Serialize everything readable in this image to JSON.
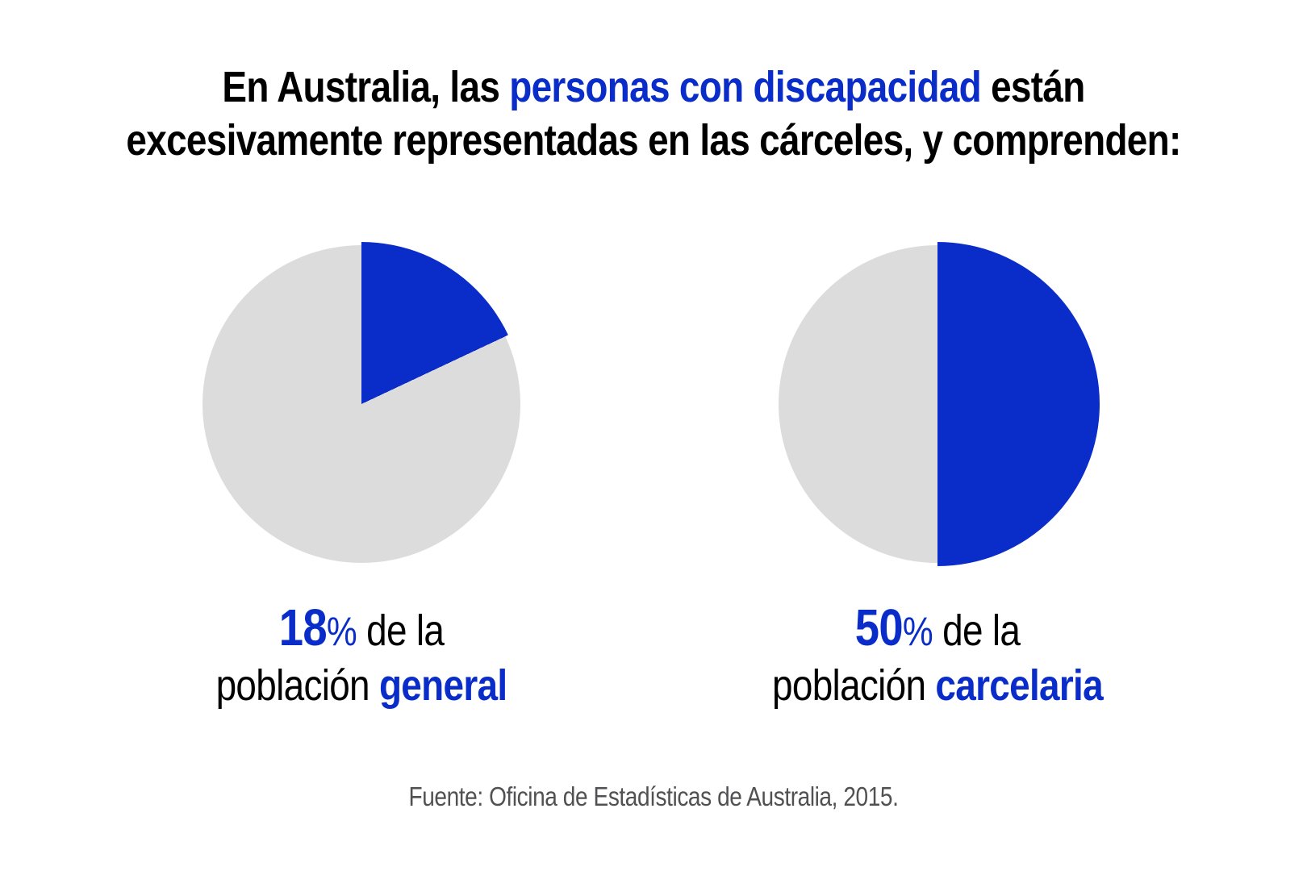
{
  "page": {
    "background": "#ffffff"
  },
  "title": {
    "line1_before": "En Australia, las ",
    "line1_highlight": "personas con discapacidad",
    "line1_after": " están",
    "line2": "excesivamente representadas en las cárceles, y comprenden:"
  },
  "figures": [
    {
      "number": "18",
      "percent_sign": "%",
      "line1_rest": " de la",
      "line2_plain": "población ",
      "line2_highlight": "general"
    },
    {
      "number": "50",
      "percent_sign": "%",
      "line1_rest": " de la",
      "line2_plain": "población ",
      "line2_highlight": "carcelaria"
    }
  ],
  "source_note": "Fuente: Oficina de Estadísticas de Australia, 2015.",
  "colors": {
    "accent_blue": "#0a2dc9",
    "pie_remainder_gray": "#dcdcdc",
    "title_black": "#000000",
    "source_gray": "#515153"
  },
  "chart_data": [
    {
      "type": "pie",
      "caption": "18% de la población general",
      "values": [
        18,
        82
      ],
      "unit": "percent",
      "highlighted_value": 18,
      "highlight_color": "#0a2dc9",
      "remainder_color": "#dcdcdc",
      "start_angle_deg": 0,
      "direction": "clockwise",
      "legend": "none"
    },
    {
      "type": "pie",
      "caption": "50% de la población carcelaria",
      "values": [
        50,
        50
      ],
      "unit": "percent",
      "highlighted_value": 50,
      "highlight_color": "#0a2dc9",
      "remainder_color": "#dcdcdc",
      "start_angle_deg": 0,
      "direction": "clockwise",
      "legend": "none"
    }
  ]
}
